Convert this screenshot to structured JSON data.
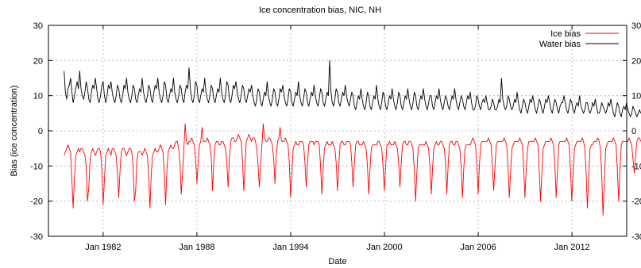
{
  "chart_data": {
    "type": "line",
    "title": "Ice  concentration bias, NIC, NH",
    "xlabel": "Date",
    "ylabel": "Bias (ice concentration)",
    "ylim": [
      -30,
      30
    ],
    "xlim": [
      1978.5,
      2015.5
    ],
    "grid": true,
    "legend_position": "top-right",
    "y_ticks": [
      -30,
      -20,
      -10,
      0,
      10,
      20,
      30
    ],
    "x_ticks": [
      {
        "label": "Jan 1982",
        "year": 1982
      },
      {
        "label": "Jan 1988",
        "year": 1988
      },
      {
        "label": "Jan 1994",
        "year": 1994
      },
      {
        "label": "Jan 2000",
        "year": 2000
      },
      {
        "label": "Jan 2006",
        "year": 2006
      },
      {
        "label": "Jan 2012",
        "year": 2012
      }
    ],
    "series": [
      {
        "name": "Ice bias",
        "color": "#ff0000",
        "x_start": 1979.5,
        "x_step": 0.0833,
        "values": [
          -7,
          -6,
          -5,
          -4,
          -5,
          -6,
          -14,
          -22,
          -13,
          -7,
          -6,
          -5,
          -6,
          -5,
          -5,
          -6,
          -7,
          -10,
          -20,
          -16,
          -8,
          -6,
          -5,
          -6,
          -7,
          -6,
          -5,
          -5,
          -6,
          -11,
          -21,
          -14,
          -7,
          -6,
          -5,
          -6,
          -7,
          -5,
          -5,
          -6,
          -7,
          -12,
          -19,
          -11,
          -6,
          -5,
          -5,
          -6,
          -7,
          -6,
          -5,
          -5,
          -6,
          -10,
          -20,
          -17,
          -8,
          -6,
          -6,
          -6,
          -7,
          -6,
          -5,
          -6,
          -7,
          -13,
          -22,
          -12,
          -7,
          -6,
          -5,
          -6,
          -6,
          -5,
          -4,
          -5,
          -6,
          -12,
          -21,
          -11,
          -6,
          -5,
          -4,
          -5,
          -5,
          -4,
          -3,
          -3,
          -5,
          -9,
          -18,
          -12,
          -5,
          2,
          -3,
          -4,
          -3,
          -3,
          -2,
          -3,
          -4,
          -8,
          -15,
          -9,
          -4,
          -3,
          1,
          -3,
          -3,
          -3,
          -2,
          -3,
          -4,
          -7,
          -17,
          -9,
          -4,
          -3,
          -3,
          -4,
          -4,
          -3,
          -3,
          -4,
          -5,
          -9,
          -16,
          -8,
          -3,
          -2,
          -2,
          -3,
          -3,
          -2,
          -1,
          -2,
          -3,
          -8,
          -17,
          -10,
          -3,
          -2,
          -1,
          -2,
          -3,
          -2,
          -2,
          -3,
          -5,
          -10,
          -16,
          -9,
          -4,
          2,
          -2,
          -3,
          -3,
          -2,
          -2,
          -3,
          -4,
          -8,
          -15,
          -7,
          -3,
          -2,
          1,
          -3,
          -3,
          -3,
          -2,
          -3,
          -4,
          -9,
          -19,
          -12,
          -5,
          -4,
          -3,
          -4,
          -4,
          -3,
          -3,
          -3,
          -4,
          -9,
          -16,
          -9,
          -4,
          -3,
          -3,
          -3,
          -4,
          -3,
          -3,
          -3,
          -4,
          -10,
          -18,
          -11,
          -5,
          -4,
          -3,
          -4,
          -4,
          -4,
          -3,
          -4,
          -5,
          -9,
          -17,
          -10,
          -4,
          -3,
          -3,
          -4,
          -4,
          -3,
          -3,
          -3,
          -4,
          -9,
          -16,
          -9,
          -4,
          -3,
          -3,
          -4,
          -4,
          -4,
          -3,
          -4,
          -5,
          -10,
          -18,
          -11,
          -5,
          -4,
          -4,
          -4,
          -4,
          -3,
          -3,
          -4,
          -5,
          -10,
          -17,
          -10,
          -4,
          -4,
          -3,
          -4,
          -4,
          -4,
          -3,
          -4,
          -5,
          -9,
          -16,
          -9,
          -4,
          -3,
          -3,
          -4,
          -4,
          -3,
          -3,
          -4,
          -5,
          -11,
          -20,
          -12,
          -5,
          -4,
          -4,
          -4,
          -4,
          -4,
          -3,
          -4,
          -5,
          -10,
          -18,
          -11,
          -5,
          -4,
          -3,
          -4,
          -4,
          -3,
          -3,
          -4,
          -5,
          -9,
          -18,
          -10,
          -4,
          -3,
          -3,
          -4,
          -4,
          -3,
          -3,
          -4,
          -5,
          -10,
          -19,
          -11,
          -5,
          -4,
          -4,
          -4,
          -4,
          -3,
          -2,
          -3,
          -4,
          -9,
          -18,
          -10,
          -4,
          -3,
          -3,
          -3,
          -3,
          -3,
          -2,
          -3,
          -4,
          -10,
          -17,
          -10,
          -4,
          -3,
          -3,
          -3,
          -3,
          -3,
          -2,
          -3,
          -4,
          -10,
          -19,
          -12,
          -5,
          -4,
          -3,
          -3,
          -3,
          -3,
          -2,
          -3,
          -4,
          -10,
          -19,
          -11,
          -5,
          -3,
          -3,
          -3,
          -3,
          -3,
          -2,
          -3,
          -4,
          -11,
          -20,
          -12,
          -5,
          -4,
          -3,
          -3,
          -3,
          -3,
          -2,
          -3,
          -4,
          -10,
          -19,
          -11,
          -4,
          -3,
          -3,
          -3,
          -3,
          -3,
          -2,
          -3,
          -4,
          -11,
          -20,
          -12,
          -5,
          -4,
          -3,
          -3,
          -3,
          -3,
          -2,
          -3,
          -5,
          -12,
          -22,
          -13,
          -5,
          -4,
          -4,
          -3,
          -3,
          -3,
          -2,
          -3,
          -5,
          -13,
          -24,
          -14,
          -5,
          -4,
          -3,
          -3,
          -3,
          -3,
          -2,
          -3,
          -4,
          -11,
          -20,
          -11,
          -4,
          -3,
          -3,
          -3,
          -3,
          -3,
          -2,
          -3,
          -4,
          -8,
          -12,
          -7,
          -3,
          -2,
          -2,
          -3
        ]
      },
      {
        "name": "Water bias",
        "color": "#000000",
        "x_start": 1979.5,
        "x_step": 0.0833,
        "values": [
          17,
          11,
          9,
          12,
          13,
          15,
          11,
          8,
          10,
          12,
          14,
          12,
          17,
          12,
          10,
          9,
          11,
          14,
          12,
          9,
          8,
          11,
          13,
          12,
          15,
          12,
          9,
          8,
          10,
          13,
          14,
          10,
          8,
          10,
          13,
          12,
          14,
          11,
          9,
          8,
          10,
          13,
          12,
          9,
          8,
          10,
          13,
          12,
          15,
          11,
          9,
          8,
          10,
          13,
          12,
          9,
          8,
          10,
          12,
          11,
          15,
          11,
          9,
          8,
          10,
          13,
          12,
          9,
          8,
          11,
          13,
          12,
          15,
          11,
          9,
          8,
          10,
          14,
          13,
          9,
          8,
          10,
          12,
          11,
          15,
          11,
          9,
          8,
          10,
          13,
          12,
          9,
          8,
          11,
          13,
          12,
          18,
          12,
          9,
          8,
          10,
          14,
          13,
          9,
          8,
          10,
          12,
          11,
          15,
          11,
          9,
          8,
          10,
          13,
          12,
          9,
          8,
          10,
          12,
          11,
          15,
          11,
          9,
          8,
          10,
          14,
          13,
          9,
          8,
          10,
          13,
          12,
          14,
          11,
          9,
          8,
          10,
          13,
          12,
          9,
          8,
          10,
          12,
          11,
          13,
          10,
          8,
          7,
          9,
          12,
          11,
          8,
          7,
          9,
          11,
          10,
          14,
          10,
          8,
          7,
          9,
          12,
          11,
          8,
          7,
          9,
          12,
          11,
          13,
          10,
          8,
          7,
          9,
          12,
          11,
          8,
          7,
          9,
          11,
          10,
          14,
          10,
          8,
          7,
          9,
          12,
          11,
          8,
          7,
          9,
          11,
          10,
          13,
          10,
          8,
          7,
          9,
          12,
          11,
          8,
          7,
          9,
          11,
          10,
          20,
          11,
          8,
          7,
          9,
          12,
          11,
          8,
          7,
          9,
          11,
          10,
          13,
          10,
          8,
          7,
          9,
          11,
          10,
          7,
          6,
          8,
          10,
          9,
          12,
          9,
          7,
          6,
          8,
          11,
          10,
          7,
          6,
          8,
          10,
          9,
          13,
          9,
          7,
          6,
          8,
          11,
          10,
          7,
          6,
          8,
          10,
          9,
          12,
          9,
          7,
          6,
          8,
          11,
          10,
          7,
          6,
          8,
          10,
          9,
          12,
          9,
          7,
          6,
          8,
          11,
          10,
          7,
          6,
          8,
          10,
          9,
          12,
          9,
          7,
          6,
          8,
          10,
          10,
          7,
          6,
          8,
          10,
          9,
          12,
          9,
          7,
          6,
          8,
          10,
          9,
          7,
          6,
          8,
          10,
          9,
          12,
          9,
          7,
          6,
          8,
          10,
          9,
          7,
          6,
          8,
          10,
          9,
          11,
          8,
          6,
          6,
          7,
          10,
          9,
          7,
          6,
          8,
          9,
          8,
          10,
          8,
          6,
          6,
          7,
          9,
          8,
          6,
          6,
          7,
          9,
          8,
          15,
          9,
          7,
          6,
          7,
          10,
          9,
          7,
          6,
          7,
          9,
          8,
          11,
          8,
          6,
          5,
          7,
          9,
          8,
          6,
          5,
          7,
          9,
          8,
          10,
          8,
          6,
          5,
          7,
          9,
          8,
          6,
          5,
          7,
          9,
          8,
          10,
          8,
          6,
          5,
          7,
          9,
          8,
          6,
          5,
          7,
          8,
          8,
          10,
          8,
          6,
          5,
          7,
          9,
          8,
          6,
          5,
          7,
          8,
          7,
          10,
          7,
          6,
          5,
          6,
          8,
          8,
          6,
          5,
          6,
          8,
          7,
          9,
          7,
          5,
          5,
          6,
          8,
          7,
          6,
          5,
          6,
          8,
          7,
          9,
          7,
          5,
          4,
          6,
          8,
          7,
          5,
          4,
          6,
          7,
          6,
          8,
          6,
          5,
          4,
          5,
          7,
          6,
          5,
          4,
          5,
          6,
          5
        ]
      }
    ]
  }
}
